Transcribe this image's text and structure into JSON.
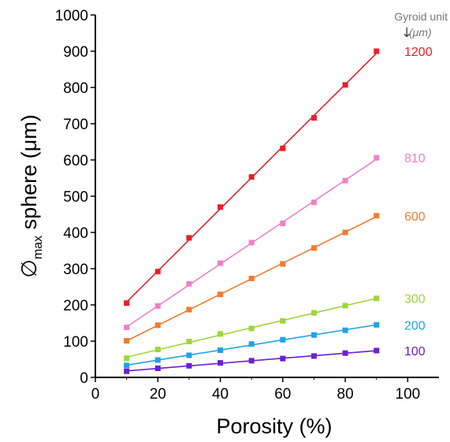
{
  "chart_data": {
    "type": "line",
    "xlabel": "Porosity (%)",
    "ylabel_prefix": "∅",
    "ylabel_subscript": "max",
    "ylabel_suffix": " sphere (μm)",
    "xlim": [
      0,
      110
    ],
    "ylim": [
      0,
      1000
    ],
    "xticks": [
      0,
      20,
      40,
      60,
      80,
      100
    ],
    "yticks": [
      0,
      100,
      200,
      300,
      400,
      500,
      600,
      700,
      800,
      900,
      1000
    ],
    "legend_title": "Gyroid unit",
    "legend_unit": "(μm)",
    "x": [
      10,
      20,
      30,
      40,
      50,
      60,
      70,
      80,
      90
    ],
    "series": [
      {
        "name": "1200",
        "color": "#e8202a",
        "values": [
          205,
          292,
          385,
          470,
          553,
          632,
          716,
          807,
          900
        ]
      },
      {
        "name": "810",
        "color": "#f07fc8",
        "values": [
          138,
          197,
          258,
          315,
          372,
          425,
          483,
          543,
          606
        ]
      },
      {
        "name": "600",
        "color": "#f07b2e",
        "values": [
          101,
          144,
          187,
          229,
          273,
          313,
          357,
          400,
          446
        ]
      },
      {
        "name": "300",
        "color": "#9dd63a",
        "values": [
          53,
          77,
          99,
          120,
          135,
          156,
          178,
          198,
          218
        ]
      },
      {
        "name": "200",
        "color": "#1fa3e6",
        "values": [
          33,
          48,
          61,
          75,
          92,
          104,
          117,
          130,
          145
        ]
      },
      {
        "name": "100",
        "color": "#6b1fd1",
        "values": [
          17,
          25,
          32,
          40,
          46,
          52,
          59,
          67,
          74
        ]
      }
    ]
  }
}
